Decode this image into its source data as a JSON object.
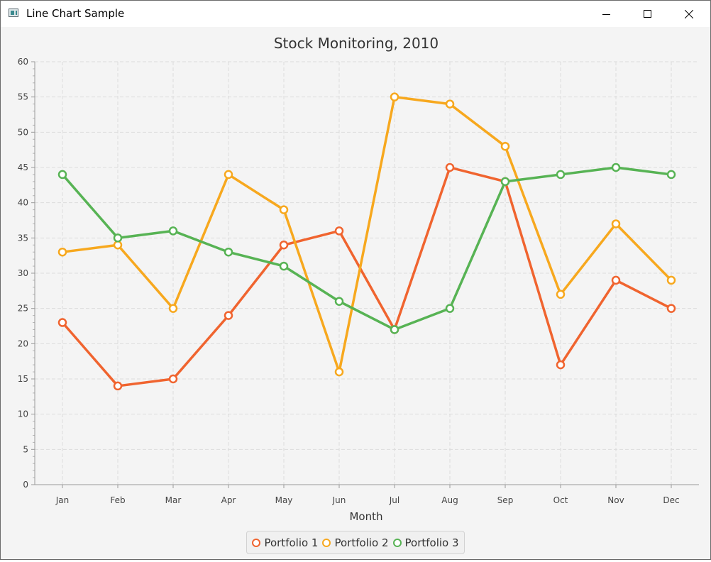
{
  "window": {
    "title": "Line Chart Sample",
    "icon": "app-window-icon",
    "controls": [
      "minimize-icon",
      "maximize-icon",
      "close-icon"
    ]
  },
  "chart_data": {
    "type": "line",
    "title": "Stock Monitoring, 2010",
    "xlabel": "Month",
    "ylabel": "",
    "categories": [
      "Jan",
      "Feb",
      "Mar",
      "Apr",
      "May",
      "Jun",
      "Jul",
      "Aug",
      "Sep",
      "Oct",
      "Nov",
      "Dec"
    ],
    "ylim": [
      0,
      60
    ],
    "yticks": [
      0,
      5,
      10,
      15,
      20,
      25,
      30,
      35,
      40,
      45,
      50,
      55,
      60
    ],
    "grid": true,
    "legend_position": "bottom-center",
    "series": [
      {
        "name": "Portfolio 1",
        "color": "#f0642f",
        "values": [
          23,
          14,
          15,
          24,
          34,
          36,
          22,
          45,
          43,
          17,
          29,
          25
        ]
      },
      {
        "name": "Portfolio 2",
        "color": "#f7a81e",
        "values": [
          33,
          34,
          25,
          44,
          39,
          16,
          55,
          54,
          48,
          27,
          37,
          29
        ]
      },
      {
        "name": "Portfolio 3",
        "color": "#57b354",
        "values": [
          44,
          35,
          36,
          33,
          31,
          26,
          22,
          25,
          43,
          44,
          45,
          44
        ]
      }
    ]
  }
}
